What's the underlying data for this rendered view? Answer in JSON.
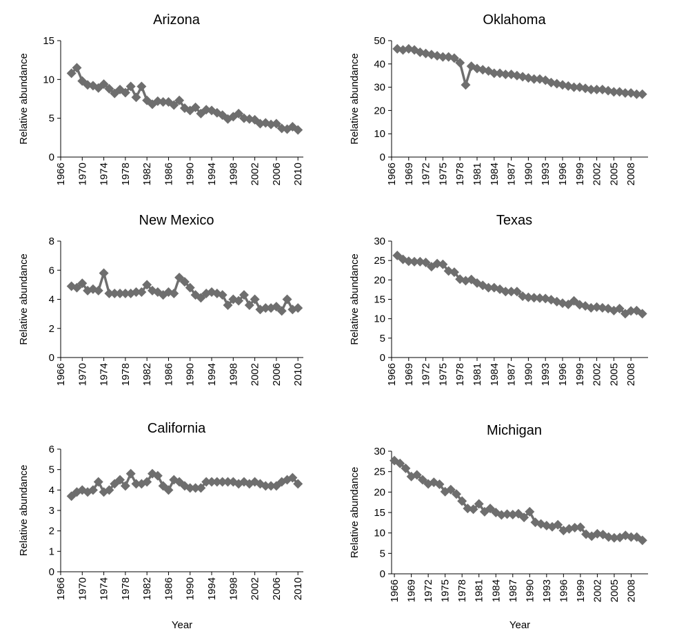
{
  "chart_data": [
    {
      "type": "line",
      "title": "Arizona",
      "ylabel": "Relative abundance",
      "x": [
        1968,
        1969,
        1970,
        1971,
        1972,
        1973,
        1974,
        1975,
        1976,
        1977,
        1978,
        1979,
        1980,
        1981,
        1982,
        1983,
        1984,
        1985,
        1986,
        1987,
        1988,
        1989,
        1990,
        1991,
        1992,
        1993,
        1994,
        1995,
        1996,
        1997,
        1998,
        1999,
        2000,
        2001,
        2002,
        2003,
        2004,
        2005,
        2006,
        2007,
        2008,
        2009,
        2010
      ],
      "series": [
        {
          "color": "#6e6e6e",
          "values": [
            10.8,
            11.5,
            9.8,
            9.3,
            9.2,
            8.9,
            9.4,
            8.8,
            8.2,
            8.7,
            8.3,
            9.1,
            7.7,
            9.1,
            7.3,
            6.8,
            7.2,
            7.1,
            7.1,
            6.7,
            7.3,
            6.3,
            6.0,
            6.4,
            5.6,
            6.1,
            6.0,
            5.7,
            5.4,
            4.9,
            5.2,
            5.6,
            5.0,
            4.9,
            4.8,
            4.3,
            4.4,
            4.2,
            4.3,
            3.7,
            3.6,
            3.9,
            3.5
          ]
        }
      ],
      "xlim": [
        1966,
        2011
      ],
      "xticks": [
        1966,
        1970,
        1974,
        1978,
        1982,
        1986,
        1990,
        1994,
        1998,
        2002,
        2006,
        2010
      ],
      "ylim": [
        0,
        15
      ],
      "yticks": [
        0,
        5,
        10,
        15
      ]
    },
    {
      "type": "line",
      "title": "Oklahoma",
      "ylabel": "Relative abundance",
      "x": [
        1967,
        1968,
        1969,
        1970,
        1971,
        1972,
        1973,
        1974,
        1975,
        1976,
        1977,
        1978,
        1979,
        1980,
        1981,
        1982,
        1983,
        1984,
        1985,
        1986,
        1987,
        1988,
        1989,
        1990,
        1991,
        1992,
        1993,
        1994,
        1995,
        1996,
        1997,
        1998,
        1999,
        2000,
        2001,
        2002,
        2003,
        2004,
        2005,
        2006,
        2007,
        2008,
        2009,
        2010
      ],
      "series": [
        {
          "color": "#6e6e6e",
          "values": [
            46.5,
            46,
            46.5,
            46,
            45,
            44.5,
            44,
            43.5,
            43,
            43,
            42.5,
            40.5,
            31,
            39,
            38,
            37.5,
            37,
            36,
            36,
            35.5,
            35.5,
            35,
            34.5,
            34,
            33.5,
            33.5,
            33,
            32,
            31.5,
            31,
            30.5,
            30,
            30,
            29.5,
            29,
            29,
            29,
            28.5,
            28,
            28,
            27.5,
            27.5,
            27,
            27
          ]
        }
      ],
      "xlim": [
        1966,
        2011
      ],
      "xticks": [
        1966,
        1969,
        1972,
        1975,
        1978,
        1981,
        1984,
        1987,
        1990,
        1993,
        1996,
        1999,
        2002,
        2005,
        2008
      ],
      "ylim": [
        0,
        50
      ],
      "yticks": [
        0,
        10,
        20,
        30,
        40,
        50
      ]
    },
    {
      "type": "line",
      "title": "New Mexico",
      "ylabel": "Relative abundance",
      "x": [
        1968,
        1969,
        1970,
        1971,
        1972,
        1973,
        1974,
        1975,
        1976,
        1977,
        1978,
        1979,
        1980,
        1981,
        1982,
        1983,
        1984,
        1985,
        1986,
        1987,
        1988,
        1989,
        1990,
        1991,
        1992,
        1993,
        1994,
        1995,
        1996,
        1997,
        1998,
        1999,
        2000,
        2001,
        2002,
        2003,
        2004,
        2005,
        2006,
        2007,
        2008,
        2009,
        2010
      ],
      "series": [
        {
          "color": "#6e6e6e",
          "values": [
            4.9,
            4.8,
            5.1,
            4.6,
            4.7,
            4.6,
            5.8,
            4.4,
            4.4,
            4.4,
            4.4,
            4.4,
            4.5,
            4.5,
            5.0,
            4.6,
            4.5,
            4.3,
            4.5,
            4.4,
            5.5,
            5.2,
            4.8,
            4.3,
            4.1,
            4.4,
            4.5,
            4.4,
            4.3,
            3.6,
            4.0,
            3.9,
            4.3,
            3.6,
            4.0,
            3.3,
            3.4,
            3.4,
            3.5,
            3.2,
            4.0,
            3.3,
            3.4
          ]
        }
      ],
      "xlim": [
        1966,
        2011
      ],
      "xticks": [
        1966,
        1970,
        1974,
        1978,
        1982,
        1986,
        1990,
        1994,
        1998,
        2002,
        2006,
        2010
      ],
      "ylim": [
        0,
        8
      ],
      "yticks": [
        0,
        2,
        4,
        6,
        8
      ]
    },
    {
      "type": "line",
      "title": "Texas",
      "ylabel": "Relative abundance",
      "x": [
        1967,
        1968,
        1969,
        1970,
        1971,
        1972,
        1973,
        1974,
        1975,
        1976,
        1977,
        1978,
        1979,
        1980,
        1981,
        1982,
        1983,
        1984,
        1985,
        1986,
        1987,
        1988,
        1989,
        1990,
        1991,
        1992,
        1993,
        1994,
        1995,
        1996,
        1997,
        1998,
        1999,
        2000,
        2001,
        2002,
        2003,
        2004,
        2005,
        2006,
        2007,
        2008,
        2009,
        2010
      ],
      "series": [
        {
          "color": "#6e6e6e",
          "values": [
            26.3,
            25.3,
            24.8,
            24.7,
            24.7,
            24.5,
            23.4,
            24.2,
            24.0,
            22.3,
            22.0,
            20.2,
            19.8,
            20.1,
            19.2,
            18.6,
            18.0,
            18.0,
            17.6,
            17.0,
            17.0,
            17.0,
            15.8,
            15.5,
            15.4,
            15.3,
            15.2,
            14.9,
            14.4,
            14.0,
            13.7,
            14.6,
            13.6,
            13.3,
            12.8,
            13.0,
            12.8,
            12.6,
            12.1,
            12.6,
            11.3,
            12.0,
            12.1,
            11.3
          ]
        }
      ],
      "xlim": [
        1966,
        2011
      ],
      "xticks": [
        1966,
        1969,
        1972,
        1975,
        1978,
        1981,
        1984,
        1987,
        1990,
        1993,
        1996,
        1999,
        2002,
        2005,
        2008
      ],
      "ylim": [
        0,
        30
      ],
      "yticks": [
        0,
        5,
        10,
        15,
        20,
        25,
        30
      ]
    },
    {
      "type": "line",
      "title": "California",
      "ylabel": "Relative abundance",
      "xlabel": "Year",
      "x": [
        1968,
        1969,
        1970,
        1971,
        1972,
        1973,
        1974,
        1975,
        1976,
        1977,
        1978,
        1979,
        1980,
        1981,
        1982,
        1983,
        1984,
        1985,
        1986,
        1987,
        1988,
        1989,
        1990,
        1991,
        1992,
        1993,
        1994,
        1995,
        1996,
        1997,
        1998,
        1999,
        2000,
        2001,
        2002,
        2003,
        2004,
        2005,
        2006,
        2007,
        2008,
        2009,
        2010
      ],
      "series": [
        {
          "color": "#6e6e6e",
          "values": [
            3.7,
            3.9,
            4.0,
            3.9,
            4.0,
            4.4,
            3.9,
            4.0,
            4.3,
            4.5,
            4.2,
            4.8,
            4.3,
            4.3,
            4.4,
            4.8,
            4.7,
            4.2,
            4.0,
            4.5,
            4.4,
            4.2,
            4.1,
            4.1,
            4.1,
            4.4,
            4.4,
            4.4,
            4.4,
            4.4,
            4.4,
            4.3,
            4.4,
            4.3,
            4.4,
            4.3,
            4.2,
            4.2,
            4.2,
            4.4,
            4.5,
            4.6,
            4.3
          ]
        }
      ],
      "xlim": [
        1966,
        2011
      ],
      "xticks": [
        1966,
        1970,
        1974,
        1978,
        1982,
        1986,
        1990,
        1994,
        1998,
        2002,
        2006,
        2010
      ],
      "ylim": [
        0,
        6
      ],
      "yticks": [
        0,
        1,
        2,
        3,
        4,
        5,
        6
      ]
    },
    {
      "type": "line",
      "title": "Michigan",
      "ylabel": "Relative abundance",
      "xlabel": "Year",
      "x": [
        1966,
        1967,
        1968,
        1969,
        1970,
        1971,
        1972,
        1973,
        1974,
        1975,
        1976,
        1977,
        1978,
        1979,
        1980,
        1981,
        1982,
        1983,
        1984,
        1985,
        1986,
        1987,
        1988,
        1989,
        1990,
        1991,
        1992,
        1993,
        1994,
        1995,
        1996,
        1997,
        1998,
        1999,
        2000,
        2001,
        2002,
        2003,
        2004,
        2005,
        2006,
        2007,
        2008,
        2009,
        2010
      ],
      "series": [
        {
          "color": "#6e6e6e",
          "values": [
            27.7,
            27.0,
            25.8,
            23.8,
            24.2,
            23.0,
            22.0,
            22.4,
            21.9,
            20.1,
            20.6,
            19.5,
            17.8,
            16.0,
            15.8,
            17.1,
            15.2,
            16.0,
            15.0,
            14.4,
            14.6,
            14.5,
            14.7,
            13.8,
            15.2,
            12.6,
            12.2,
            11.8,
            11.5,
            12.0,
            10.6,
            11.0,
            11.3,
            11.4,
            9.7,
            9.2,
            9.8,
            9.6,
            9.0,
            8.8,
            8.9,
            9.4,
            9.0,
            9.0,
            8.2
          ]
        }
      ],
      "xlim": [
        1965.5,
        2011
      ],
      "xticks": [
        1966,
        1969,
        1972,
        1975,
        1978,
        1981,
        1984,
        1987,
        1990,
        1993,
        1996,
        1999,
        2002,
        2005,
        2008
      ],
      "ylim": [
        0,
        30
      ],
      "yticks": [
        0,
        5,
        10,
        15,
        20,
        25,
        30
      ]
    }
  ]
}
